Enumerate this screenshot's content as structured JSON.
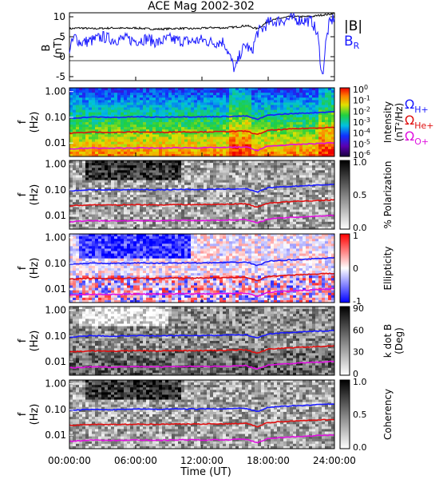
{
  "title": "ACE Mag 2002-302",
  "time_axis": {
    "label": "Time (UT)",
    "range_hours": [
      0,
      24
    ],
    "ticks": [
      0,
      6,
      12,
      18,
      24
    ],
    "tick_labels": [
      "00:00:00",
      "06:00:00",
      "12:00:00",
      "18:00:00",
      "24:00:00"
    ]
  },
  "freq_axis": {
    "label_top": "f",
    "label_bottom": "(Hz)",
    "scale": "log",
    "range": [
      0.003,
      1.4
    ],
    "ticks": [
      1.0,
      0.1,
      0.01
    ],
    "tick_labels": [
      "1.00",
      "0.10",
      "0.01"
    ]
  },
  "gyro_labels": [
    {
      "base": "Ω",
      "sub": "H+",
      "color": "#1a1aff"
    },
    {
      "base": "Ω",
      "sub": "He+",
      "color": "#e01010"
    },
    {
      "base": "Ω",
      "sub": "O+",
      "color": "#e010e0"
    }
  ],
  "colors": {
    "B_total": "#000000",
    "B_R": "#1a1aff",
    "H": "#1a1aff",
    "He": "#e01010",
    "O": "#e010e0"
  },
  "panels": [
    {
      "id": "field",
      "ylabel_top": "B",
      "ylabel_bottom": "(nT)",
      "legend_total": "|B|",
      "legend_r_base": "B",
      "legend_r_sub": "R",
      "ylim": [
        -6,
        11
      ],
      "ticks": [
        10,
        5,
        0,
        -5
      ],
      "tick_labels": [
        "10",
        "5",
        "0",
        "-5"
      ]
    },
    {
      "id": "intensity",
      "colormap": "rainbow",
      "cbar_label_line1": "Intensity",
      "cbar_label_line2": "(nT²/Hz)",
      "cbar_ticks": [
        {
          "base": "10",
          "exp": "0"
        },
        {
          "base": "10",
          "exp": "-1"
        },
        {
          "base": "10",
          "exp": "-2"
        },
        {
          "base": "10",
          "exp": "-3"
        },
        {
          "base": "10",
          "exp": "-4"
        },
        {
          "base": "10",
          "exp": "-5"
        },
        {
          "base": "10",
          "exp": "-6"
        }
      ]
    },
    {
      "id": "polarization",
      "colormap": "gray",
      "cbar_label": "% Polarization",
      "cbar_ticks": [
        "1.0",
        "0.5",
        "0.0"
      ]
    },
    {
      "id": "ellipticity",
      "colormap": "bwr",
      "cbar_label": "Ellipticity",
      "cbar_ticks": [
        "1",
        "0",
        "-1"
      ]
    },
    {
      "id": "wave_normal",
      "colormap": "gray",
      "cbar_label_line1": "k dot B",
      "cbar_label_line2": "(Deg)",
      "cbar_ticks": [
        "90",
        "60",
        "30",
        "0"
      ]
    },
    {
      "id": "coherency",
      "colormap": "gray",
      "cbar_label": "Coherency",
      "cbar_ticks": [
        "1.0",
        "0.5",
        "0.0"
      ]
    }
  ],
  "chart_data": {
    "type": "line",
    "title": "ACE Mag 2002-302",
    "xlabel": "Time (UT)",
    "xlim_hours": [
      0,
      24
    ],
    "field_series": [
      {
        "name": "|B|",
        "x_hours": [
          0,
          1,
          2,
          3,
          4,
          5,
          6,
          7,
          8,
          9,
          10,
          11,
          12,
          13,
          14,
          15,
          16,
          17,
          18,
          19,
          20,
          21,
          22,
          23,
          23.5,
          24
        ],
        "values": [
          7.0,
          7.2,
          7.0,
          7.1,
          7.2,
          7.1,
          7.2,
          7.0,
          6.9,
          7.0,
          7.1,
          7.0,
          7.1,
          7.3,
          7.2,
          7.4,
          7.8,
          7.0,
          8.8,
          9.6,
          10.0,
          10.0,
          10.1,
          10.5,
          10.6,
          11.0
        ]
      },
      {
        "name": "B_R",
        "x_hours": [
          0,
          0.5,
          1,
          2,
          3,
          4,
          5,
          6,
          7,
          8,
          9,
          10,
          11,
          12,
          13,
          14,
          15,
          15.5,
          16,
          16.5,
          17,
          17.5,
          18,
          19,
          20,
          21,
          22,
          22.5,
          22.9,
          23.2,
          23.5,
          24
        ],
        "values": [
          2.0,
          5.0,
          3.5,
          4.0,
          5.0,
          4.2,
          4.5,
          4.0,
          4.5,
          3.5,
          4.5,
          4.0,
          3.8,
          4.2,
          3.5,
          3.8,
          -3.5,
          1.0,
          3.0,
          1.0,
          6.0,
          7.0,
          8.5,
          9.0,
          9.5,
          9.2,
          8.8,
          5.0,
          -5.5,
          3.0,
          8.0,
          10.0
        ]
      }
    ],
    "spectrogram_panels": [
      "Intensity (nT²/Hz)",
      "% Polarization",
      "Ellipticity",
      "k dot B (Deg)",
      "Coherency"
    ],
    "gyrofrequency_series": [
      {
        "name": "ΩH+",
        "x_hours": [
          0,
          2,
          4,
          6,
          8,
          10,
          12,
          14,
          16,
          17,
          17.5,
          18,
          20,
          22,
          24
        ],
        "values_hz": [
          0.092,
          0.102,
          0.099,
          0.104,
          0.101,
          0.105,
          0.104,
          0.107,
          0.112,
          0.082,
          0.099,
          0.121,
          0.137,
          0.15,
          0.165
        ]
      },
      {
        "name": "ΩHe+",
        "x_hours": [
          0,
          2,
          4,
          6,
          8,
          10,
          12,
          14,
          16,
          17,
          17.5,
          18,
          20,
          22,
          24
        ],
        "values_hz": [
          0.024,
          0.0265,
          0.0258,
          0.027,
          0.0262,
          0.0272,
          0.027,
          0.0278,
          0.029,
          0.021,
          0.0258,
          0.031,
          0.035,
          0.038,
          0.041
        ]
      },
      {
        "name": "ΩO+",
        "x_hours": [
          0,
          2,
          4,
          6,
          8,
          10,
          12,
          14,
          16,
          17,
          17.5,
          18,
          20,
          22,
          24
        ],
        "values_hz": [
          0.0058,
          0.0064,
          0.0062,
          0.0065,
          0.0063,
          0.0066,
          0.0065,
          0.0067,
          0.007,
          0.0051,
          0.0062,
          0.0075,
          0.0085,
          0.0094,
          0.0103
        ]
      }
    ]
  }
}
